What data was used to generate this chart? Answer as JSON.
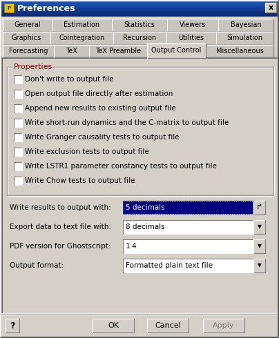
{
  "title": "Preferences",
  "bg_color": "#d4d0c8",
  "titlebar_gradient_top": "#1c56b8",
  "titlebar_gradient_bot": "#0a246a",
  "titlebar_text_color": "#ffffff",
  "tabs_row1": [
    "General",
    "Estimation",
    "Statistics",
    "Viewers",
    "Bayesian"
  ],
  "tabs_row2": [
    "Graphics",
    "Cointegration",
    "Recursion",
    "Utilities",
    "Simulation"
  ],
  "tabs_row3": [
    "Forecasting",
    "TeX",
    "TeX Preamble",
    "Output Control",
    "Miscellaneous"
  ],
  "active_tab": "Output Control",
  "properties_label": "Properties",
  "checkboxes": [
    "Don't write to output file",
    "Open output file directly after estimation",
    "Append new results to existing output file",
    "Write short-run dynamics and the C-matrix to output file",
    "Write Granger causality tests to output file",
    "Write exclusion tests to output file",
    "Write LSTR1 parameter constancy tests to output file",
    "Write Chow tests to output file"
  ],
  "dropdowns": [
    {
      "label": "Write results to output with:",
      "value": "5 decimals",
      "selected": true
    },
    {
      "label": "Export data to text file with:",
      "value": "8 decimals",
      "selected": false
    },
    {
      "label": "PDF version for Ghostscript:",
      "value": "1.4",
      "selected": false
    },
    {
      "label": "Output format:",
      "value": "Formatted plain text file",
      "selected": false
    }
  ],
  "buttons": [
    "OK",
    "Cancel",
    "Apply"
  ],
  "help_button": "?",
  "selected_dropdown_bg": "#000080",
  "selected_dropdown_text": "#ffffff",
  "dropdown_bg": "#ffffff",
  "dropdown_text": "#000000"
}
